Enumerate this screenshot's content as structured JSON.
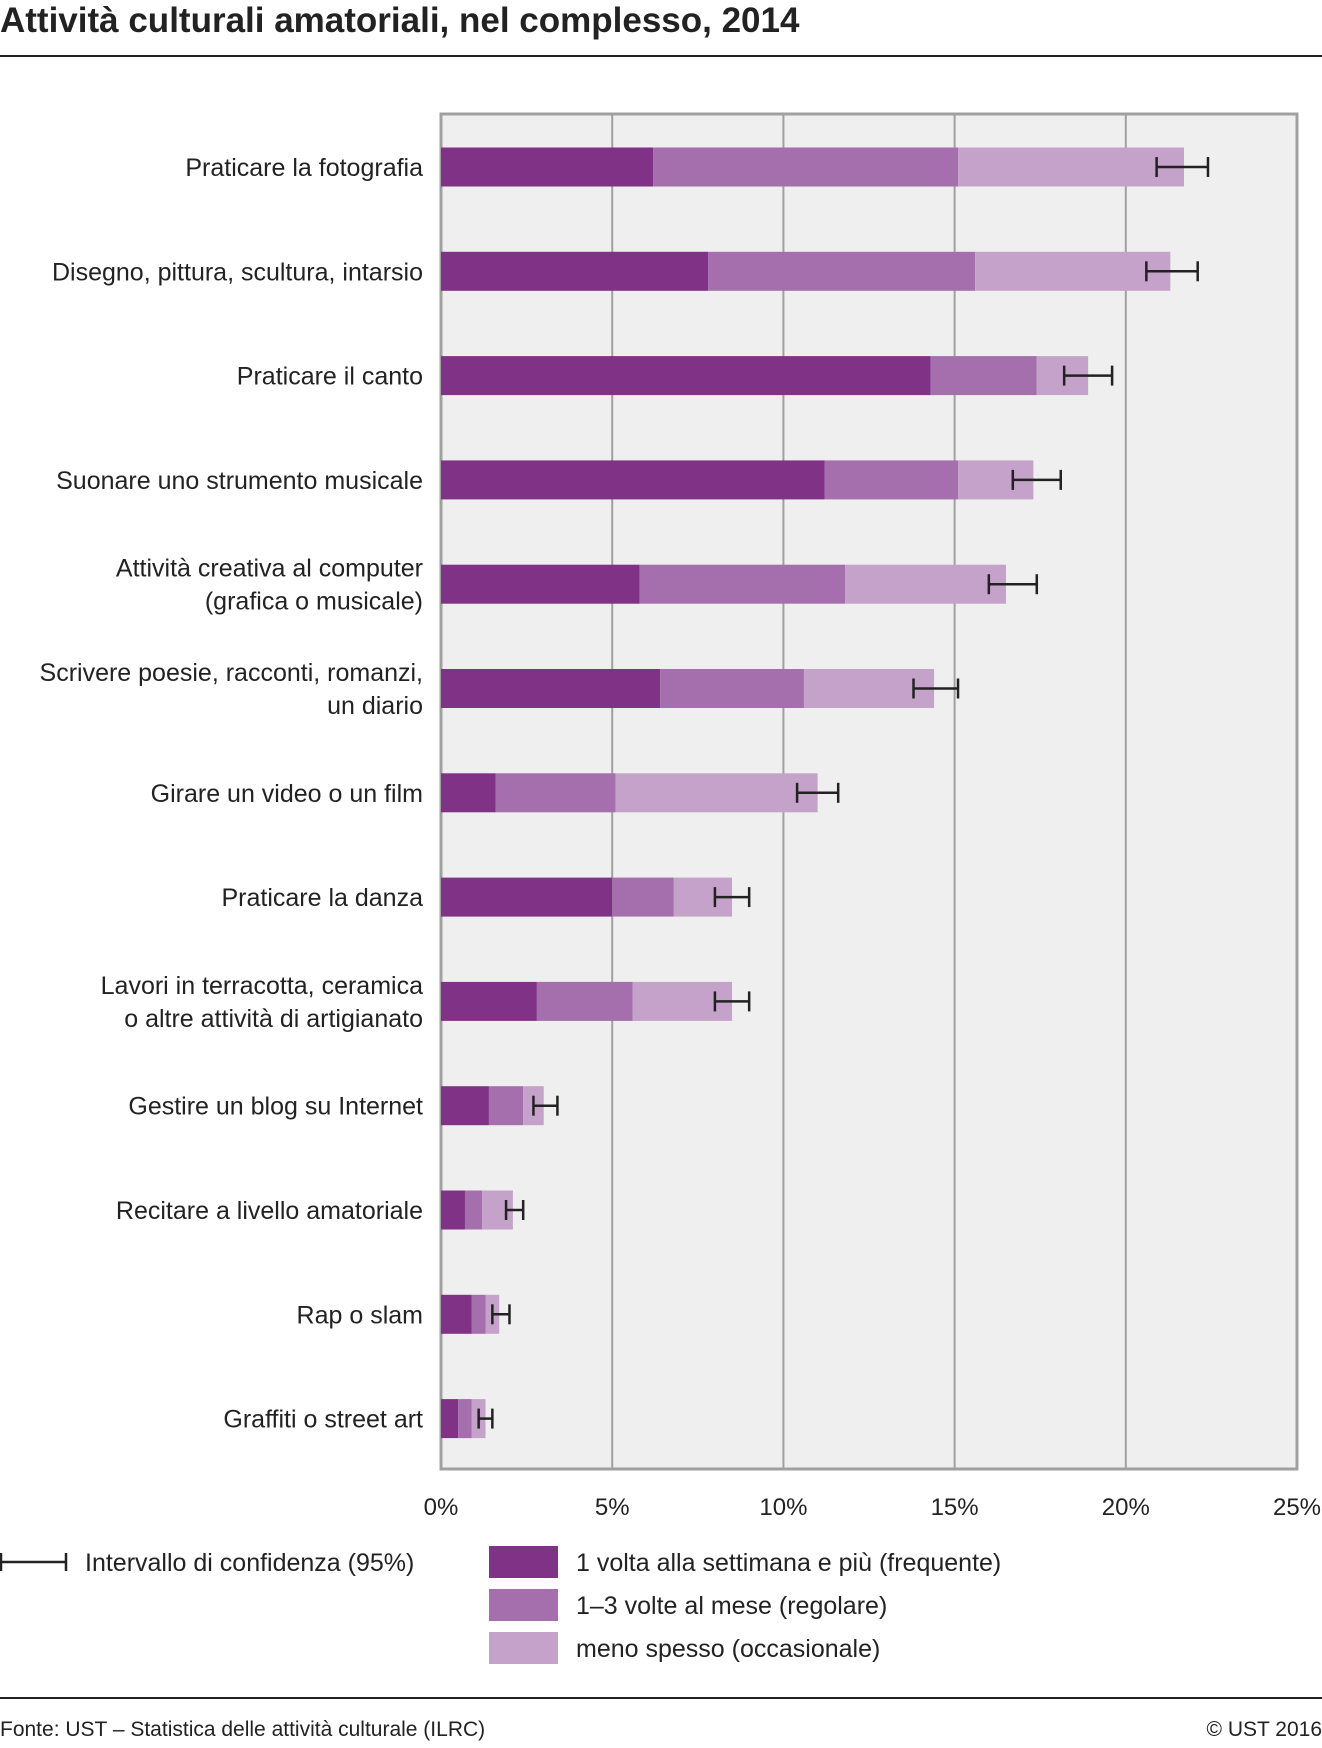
{
  "title": "Attività culturali amatoriali, nel complesso, 2014",
  "colors": {
    "frequent": "#7f3286",
    "regular": "#a56eac",
    "occasional": "#c5a2c9",
    "plot_bg": "#efefef",
    "grid": "#a0a0a0",
    "error_bar": "#222222"
  },
  "chart_data": {
    "type": "bar",
    "orientation": "horizontal",
    "stacked": true,
    "title": "Attività culturali amatoriali, nel complesso, 2014",
    "categories": [
      [
        "Praticare la fotografia"
      ],
      [
        "Disegno, pittura, scultura, intarsio"
      ],
      [
        "Praticare il canto"
      ],
      [
        "Suonare uno strumento musicale"
      ],
      [
        "Attività creativa al computer",
        "(grafica o musicale)"
      ],
      [
        "Scrivere poesie, racconti, romanzi,",
        "un diario"
      ],
      [
        "Girare un video o un film"
      ],
      [
        "Praticare la danza"
      ],
      [
        "Lavori in terracotta, ceramica",
        "o altre attività di artigianato"
      ],
      [
        "Gestire un blog su Internet"
      ],
      [
        "Recitare a livello amatoriale"
      ],
      [
        "Rap o slam"
      ],
      [
        "Graffiti o street art"
      ]
    ],
    "series": [
      {
        "name": "1 volta alla settimana e più (frequente)",
        "values": [
          6.2,
          7.8,
          14.3,
          11.2,
          5.8,
          6.4,
          1.6,
          5.0,
          2.8,
          1.4,
          0.7,
          0.9,
          0.5
        ]
      },
      {
        "name": "1–3 volte al mese (regolare)",
        "values": [
          8.9,
          7.8,
          3.1,
          3.9,
          6.0,
          4.2,
          3.5,
          1.8,
          2.8,
          1.0,
          0.5,
          0.4,
          0.4
        ]
      },
      {
        "name": "meno spesso (occasionale)",
        "values": [
          6.6,
          5.7,
          1.5,
          2.2,
          4.7,
          3.8,
          5.9,
          1.7,
          2.9,
          0.6,
          0.9,
          0.4,
          0.4
        ]
      }
    ],
    "confidence_interval": {
      "name": "Intervallo di confidenza (95%)",
      "low": [
        20.9,
        20.6,
        18.2,
        16.7,
        16.0,
        13.8,
        10.4,
        8.0,
        8.0,
        2.7,
        1.9,
        1.5,
        1.1
      ],
      "high": [
        22.4,
        22.1,
        19.6,
        18.1,
        17.4,
        15.1,
        11.6,
        9.0,
        9.0,
        3.4,
        2.4,
        2.0,
        1.5
      ]
    },
    "xlim": [
      0,
      25
    ],
    "xticks": [
      "0%",
      "5%",
      "10%",
      "15%",
      "20%",
      "25%"
    ],
    "xlabel": "",
    "ylabel": "",
    "grid": true,
    "legend_position": "bottom"
  },
  "footer": {
    "source": "Fonte: UST – Statistica delle attività culturale (ILRC)",
    "copyright": "© UST 2016"
  }
}
